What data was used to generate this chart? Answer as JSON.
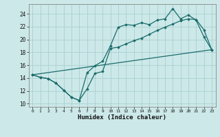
{
  "title": "",
  "xlabel": "Humidex (Indice chaleur)",
  "ylabel": "",
  "bg_color": "#cce8e8",
  "grid_color": "#aacfcf",
  "line_color": "#1a6b6b",
  "xlim": [
    -0.5,
    23.5
  ],
  "ylim": [
    9.5,
    25.5
  ],
  "xticks": [
    0,
    1,
    2,
    3,
    4,
    5,
    6,
    7,
    8,
    9,
    10,
    11,
    12,
    13,
    14,
    15,
    16,
    17,
    18,
    19,
    20,
    21,
    22,
    23
  ],
  "yticks": [
    10,
    12,
    14,
    16,
    18,
    20,
    22,
    24
  ],
  "line1_x": [
    0,
    1,
    2,
    3,
    4,
    5,
    6,
    7,
    8,
    9,
    10,
    11,
    12,
    13,
    14,
    15,
    16,
    17,
    18,
    19,
    20,
    21,
    22,
    23
  ],
  "line1_y": [
    14.5,
    14.1,
    13.9,
    13.2,
    12.1,
    11.0,
    10.5,
    14.8,
    15.9,
    16.6,
    19.0,
    21.9,
    22.3,
    22.2,
    22.6,
    22.3,
    23.0,
    23.2,
    24.8,
    23.2,
    23.8,
    23.0,
    20.4,
    18.4
  ],
  "line2_x": [
    0,
    1,
    2,
    3,
    4,
    5,
    6,
    7,
    8,
    9,
    10,
    11,
    12,
    13,
    14,
    15,
    16,
    17,
    18,
    19,
    20,
    21,
    22,
    23
  ],
  "line2_y": [
    14.5,
    14.1,
    13.9,
    13.2,
    12.1,
    11.0,
    10.5,
    12.3,
    14.7,
    15.0,
    18.6,
    18.8,
    19.3,
    19.8,
    20.2,
    20.8,
    21.4,
    21.9,
    22.4,
    22.9,
    23.2,
    23.1,
    21.5,
    18.4
  ],
  "line3_x": [
    0,
    23
  ],
  "line3_y": [
    14.5,
    18.4
  ],
  "figsize": [
    3.2,
    2.0
  ],
  "dpi": 100
}
